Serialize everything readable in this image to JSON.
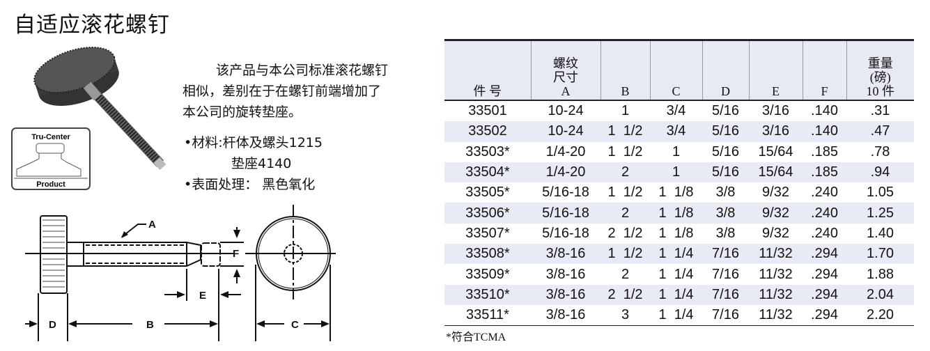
{
  "title": "自适应滚花螺钉",
  "description": [
    "该产品与本公司标准滚花螺钉",
    "相似，差别在于在螺钉前端增加了",
    "本公司的旋转垫座。"
  ],
  "specs": {
    "material_label": "•材料:",
    "material_1": "杆体及螺头1215",
    "material_2": "垫座4140",
    "finish": "•表面处理：  黑色氧化"
  },
  "logo": {
    "top": "Tru-Center",
    "bottom": "Product"
  },
  "drawing_labels": {
    "a": "A",
    "b": "B",
    "c": "C",
    "d": "D",
    "e": "E",
    "f": "F"
  },
  "table": {
    "headers": [
      [
        "件  号"
      ],
      [
        "螺纹",
        "尺寸",
        "A"
      ],
      [
        "B"
      ],
      [
        "C"
      ],
      [
        "D"
      ],
      [
        "E"
      ],
      [
        "F"
      ],
      [
        "重量",
        "(磅)",
        "10 件"
      ]
    ],
    "rows": [
      [
        "33501",
        "10-24",
        "1",
        "3/4",
        "5/16",
        "3/16",
        ".140",
        ".31"
      ],
      [
        "33502",
        "10-24",
        "1  1/2",
        "3/4",
        "5/16",
        "3/16",
        ".140",
        ".47"
      ],
      [
        "33503*",
        "1/4-20",
        "1  1/2",
        "1",
        "5/16",
        "15/64",
        ".185",
        ".78"
      ],
      [
        "33504*",
        "1/4-20",
        "2",
        "1",
        "5/16",
        "15/64",
        ".185",
        ".94"
      ],
      [
        "33505*",
        "5/16-18",
        "1  1/2",
        "1  1/8",
        "3/8",
        "9/32",
        ".240",
        "1.05"
      ],
      [
        "33506*",
        "5/16-18",
        "2",
        "1  1/8",
        "3/8",
        "9/32",
        ".240",
        "1.25"
      ],
      [
        "33507*",
        "5/16-18",
        "2  1/2",
        "1  1/8",
        "3/8",
        "9/32",
        ".240",
        "1.40"
      ],
      [
        "33508*",
        "3/8-16",
        "1  1/2",
        "1  1/4",
        "7/16",
        "11/32",
        ".294",
        "1.70"
      ],
      [
        "33509*",
        "3/8-16",
        "2",
        "1  1/4",
        "7/16",
        "11/32",
        ".294",
        "1.88"
      ],
      [
        "33510*",
        "3/8-16",
        "2  1/2",
        "1  1/4",
        "7/16",
        "11/32",
        ".294",
        "2.04"
      ],
      [
        "33511*",
        "3/8-16",
        "3",
        "1  1/4",
        "7/16",
        "11/32",
        ".294",
        "2.20"
      ]
    ]
  },
  "note": "*符合TCMA"
}
